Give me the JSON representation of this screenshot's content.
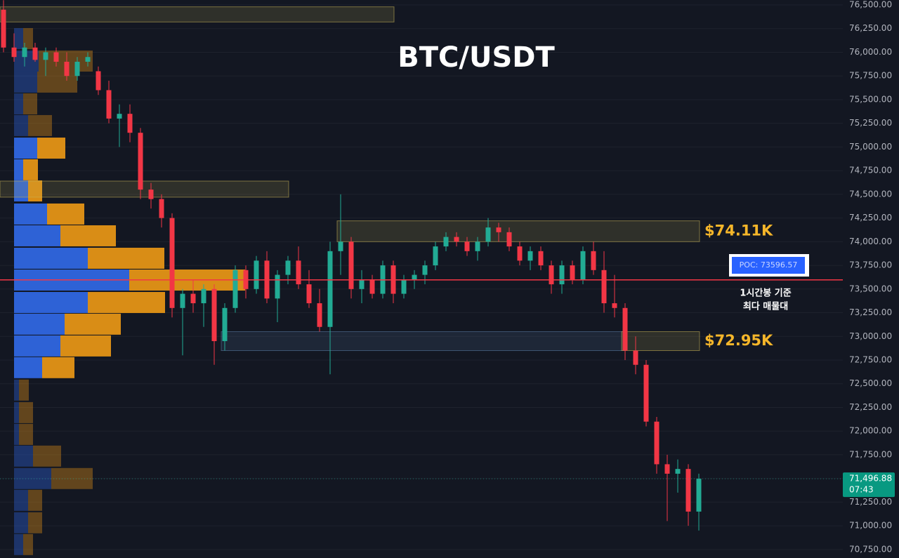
{
  "chart_data": {
    "type": "candlestick",
    "title": "BTC/USDT",
    "ylim": [
      70660,
      76552
    ],
    "yticks": [
      {
        "value": 70750,
        "label": "70,750.00"
      },
      {
        "value": 71000,
        "label": "71,000.00"
      },
      {
        "value": 71250,
        "label": "71,250.00"
      },
      {
        "value": 71500,
        "label": "71,500.00"
      },
      {
        "value": 71750,
        "label": "71,750.00"
      },
      {
        "value": 72000,
        "label": "72,000.00"
      },
      {
        "value": 72250,
        "label": "72,250.00"
      },
      {
        "value": 72500,
        "label": "72,500.00"
      },
      {
        "value": 72750,
        "label": "72,750.00"
      },
      {
        "value": 73000,
        "label": "73,000.00"
      },
      {
        "value": 73250,
        "label": "73,250.00"
      },
      {
        "value": 73500,
        "label": "73,500.00"
      },
      {
        "value": 73750,
        "label": "73,750.00"
      },
      {
        "value": 74000,
        "label": "74,000.00"
      },
      {
        "value": 74250,
        "label": "74,250.00"
      },
      {
        "value": 74500,
        "label": "74,500.00"
      },
      {
        "value": 74750,
        "label": "74,750.00"
      },
      {
        "value": 75000,
        "label": "75,000.00"
      },
      {
        "value": 75250,
        "label": "75,250.00"
      },
      {
        "value": 75500,
        "label": "75,500.00"
      },
      {
        "value": 75750,
        "label": "75,750.00"
      },
      {
        "value": 76000,
        "label": "76,000.00"
      },
      {
        "value": 76250,
        "label": "76,250.00"
      },
      {
        "value": 76500,
        "label": "76,500.00"
      }
    ],
    "grid": true,
    "up_color": "#22ab94",
    "down_color": "#f23645",
    "open": [
      76450,
      76050,
      75950,
      76050,
      75920,
      76000,
      75900,
      75750,
      75900,
      75800,
      75600,
      75300,
      75350,
      75150,
      74550,
      74450,
      74250,
      73300,
      73450,
      73350,
      73500,
      72950,
      73300,
      73700,
      73500,
      73800,
      73400,
      73650,
      73800,
      73550,
      73350,
      73100,
      73900,
      74000,
      73500,
      73600,
      73450,
      73750,
      73450,
      73600,
      73650,
      73750,
      73950,
      74050,
      74000,
      73900,
      74000,
      74150,
      74100,
      73950,
      73800,
      73900,
      73750,
      73550,
      73750,
      73600,
      73900,
      73700,
      73350,
      73300,
      72850,
      72700,
      72100,
      71650,
      71550,
      71600,
      71150
    ],
    "high": [
      76550,
      76200,
      76100,
      76100,
      76050,
      76050,
      76000,
      75950,
      76000,
      75850,
      75700,
      75450,
      75450,
      75200,
      74620,
      74500,
      74300,
      73500,
      73600,
      73550,
      73550,
      73350,
      73750,
      73750,
      73850,
      73900,
      73700,
      73850,
      73950,
      73700,
      73500,
      74000,
      74500,
      74050,
      73700,
      73650,
      73800,
      73800,
      73650,
      73700,
      73800,
      74000,
      74100,
      74100,
      74050,
      74050,
      74250,
      74200,
      74150,
      74000,
      73950,
      73950,
      73800,
      73800,
      73800,
      73950,
      74000,
      73900,
      73650,
      73350,
      73000,
      72750,
      72150,
      71750,
      71700,
      71650,
      71550
    ],
    "low": [
      76000,
      75900,
      75850,
      75900,
      75750,
      75850,
      75700,
      75700,
      75850,
      75550,
      75250,
      75000,
      75050,
      74450,
      74350,
      74150,
      73200,
      72800,
      73250,
      73100,
      72700,
      72850,
      73250,
      73400,
      73450,
      73350,
      73150,
      73550,
      73500,
      73300,
      73050,
      72600,
      73650,
      73400,
      73350,
      73400,
      73400,
      73350,
      73400,
      73500,
      73550,
      73700,
      73900,
      73950,
      73850,
      73800,
      73950,
      74000,
      73900,
      73750,
      73700,
      73700,
      73450,
      73450,
      73550,
      73550,
      73650,
      73250,
      73200,
      72750,
      72600,
      72050,
      71550,
      71050,
      71350,
      71000,
      70950
    ],
    "close": [
      76050,
      75950,
      76050,
      75920,
      76000,
      75900,
      75750,
      75900,
      75950,
      75600,
      75300,
      75350,
      75150,
      74550,
      74450,
      74250,
      73300,
      73450,
      73350,
      73500,
      72950,
      73300,
      73700,
      73500,
      73800,
      73400,
      73650,
      73800,
      73550,
      73350,
      73100,
      73900,
      74000,
      73500,
      73600,
      73450,
      73750,
      73450,
      73600,
      73650,
      73750,
      73950,
      74050,
      74000,
      73900,
      74000,
      74150,
      74100,
      73950,
      73800,
      73900,
      73750,
      73550,
      73750,
      73600,
      73900,
      73700,
      73350,
      73300,
      72850,
      72700,
      72100,
      71650,
      71550,
      71600,
      71150,
      71496.88
    ],
    "zones": [
      {
        "top": 76480,
        "bottom": 76320,
        "start": 0,
        "end": 37,
        "color": "#c9b458"
      },
      {
        "top": 74640,
        "bottom": 74470,
        "start": 0,
        "end": 27,
        "color": "#c9b458"
      },
      {
        "top": 74220,
        "bottom": 74000,
        "start": 32,
        "end": 66,
        "color": "#c9b458"
      },
      {
        "top": 73050,
        "bottom": 72850,
        "start": 21,
        "end": 59,
        "color": "#5b7fa8"
      },
      {
        "top": 73050,
        "bottom": 72850,
        "start": 59,
        "end": 66,
        "color": "#c9b458"
      }
    ],
    "annotations": [
      {
        "value": 74110,
        "label": "$74.11K"
      },
      {
        "value": 72950,
        "label": "$72.95K"
      }
    ],
    "poc": {
      "value": 73596.57,
      "label": "POC: 73596.57",
      "note": [
        "1시간봉 기준",
        "최다 매물대"
      ],
      "color": "#f23645"
    },
    "last_price": {
      "value": 71496.88,
      "label": "71,496.88",
      "countdown": "07:43"
    },
    "volume_profile": {
      "buy_color": "#2e62d6",
      "sell_color": "#d98d16",
      "value_area": [
        72560,
        75100
      ],
      "rows": [
        {
          "price": 76144,
          "buy": 13,
          "sell": 14
        },
        {
          "price": 75907,
          "buy": 35,
          "sell": 77
        },
        {
          "price": 75685,
          "buy": 33,
          "sell": 57
        },
        {
          "price": 75455,
          "buy": 13,
          "sell": 20
        },
        {
          "price": 75226,
          "buy": 20,
          "sell": 34
        },
        {
          "price": 74988,
          "buy": 33,
          "sell": 40
        },
        {
          "price": 74759,
          "buy": 13,
          "sell": 21
        },
        {
          "price": 74536,
          "buy": 20,
          "sell": 20
        },
        {
          "price": 74292,
          "buy": 47,
          "sell": 53
        },
        {
          "price": 74062,
          "buy": 66,
          "sell": 79
        },
        {
          "price": 73825,
          "buy": 105,
          "sell": 109
        },
        {
          "price": 73595,
          "buy": 164,
          "sell": 165
        },
        {
          "price": 73358,
          "buy": 105,
          "sell": 110
        },
        {
          "price": 73129,
          "buy": 72,
          "sell": 80
        },
        {
          "price": 72899,
          "buy": 66,
          "sell": 72
        },
        {
          "price": 72670,
          "buy": 40,
          "sell": 46
        },
        {
          "price": 72433,
          "buy": 7,
          "sell": 14
        },
        {
          "price": 72195,
          "buy": 7,
          "sell": 20
        },
        {
          "price": 71965,
          "buy": 7,
          "sell": 20
        },
        {
          "price": 71736,
          "buy": 27,
          "sell": 40
        },
        {
          "price": 71499,
          "buy": 53,
          "sell": 59
        },
        {
          "price": 71269,
          "buy": 20,
          "sell": 20
        },
        {
          "price": 71032,
          "buy": 20,
          "sell": 20
        },
        {
          "price": 70802,
          "buy": 13,
          "sell": 14
        }
      ]
    }
  }
}
